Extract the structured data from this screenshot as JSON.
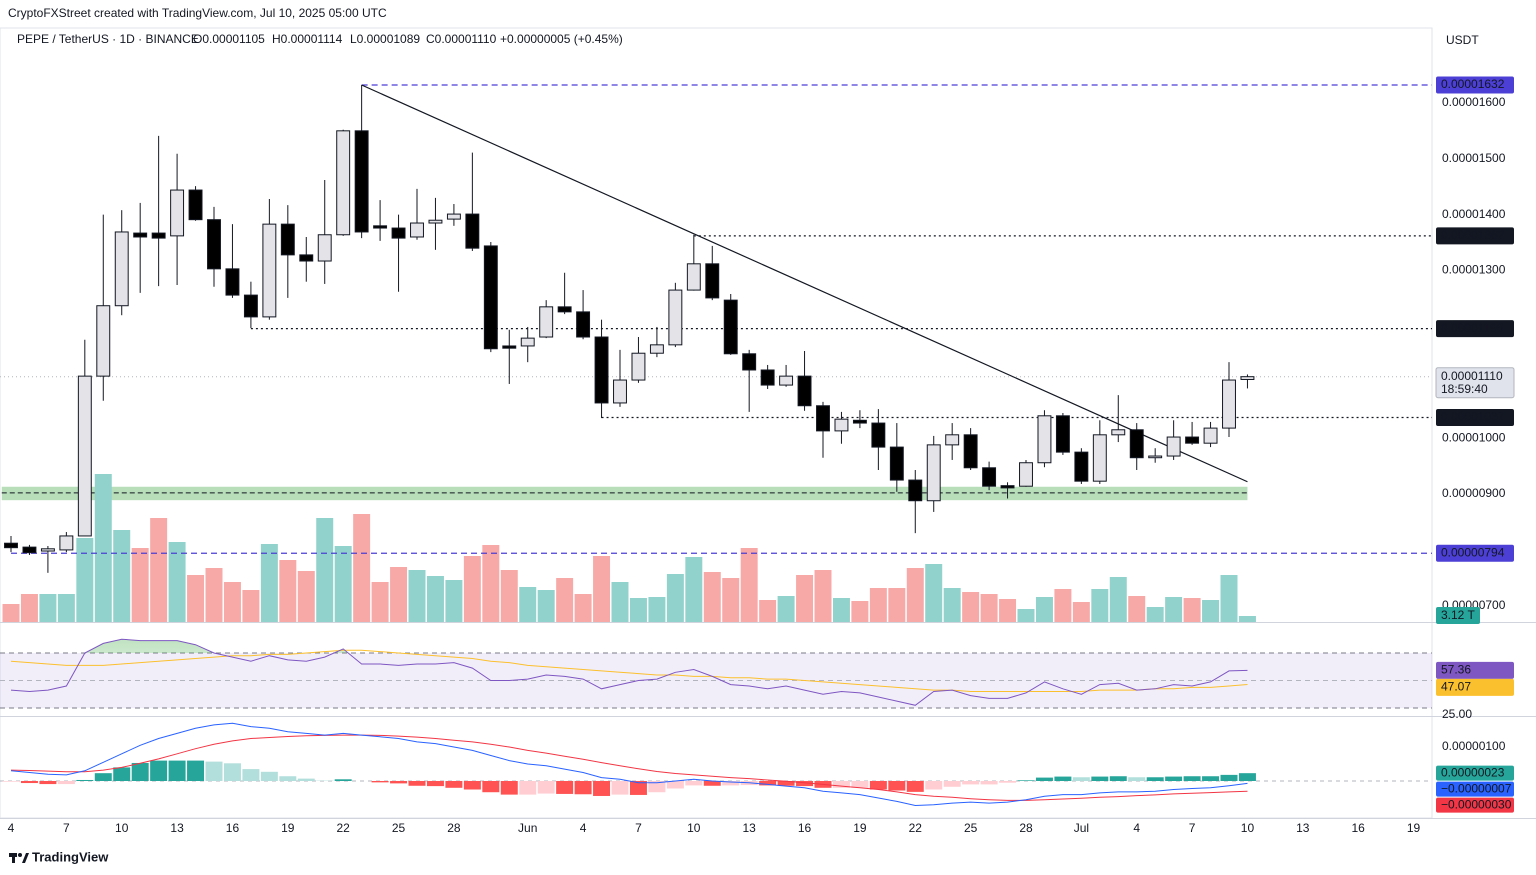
{
  "chart_data": {
    "type": "candlestick",
    "attribution": "CryptoFXStreet created with TradingView.com, Jul 10, 2025 05:00 UTC",
    "title": "PEPE / TetherUS · 1D · BINANCE",
    "ohlc_legend": [
      "O0.00001105",
      "H0.00001114",
      "L0.00001089",
      "C0.00001110",
      "+0.00000005 (+0.45%)"
    ],
    "currency": "USDT",
    "brand": "TradingView",
    "x": [
      "2025-05-04",
      "2025-05-05",
      "2025-05-06",
      "2025-05-07",
      "2025-05-08",
      "2025-05-09",
      "2025-05-10",
      "2025-05-11",
      "2025-05-12",
      "2025-05-13",
      "2025-05-14",
      "2025-05-15",
      "2025-05-16",
      "2025-05-17",
      "2025-05-18",
      "2025-05-19",
      "2025-05-20",
      "2025-05-21",
      "2025-05-22",
      "2025-05-23",
      "2025-05-24",
      "2025-05-25",
      "2025-05-26",
      "2025-05-27",
      "2025-05-28",
      "2025-05-29",
      "2025-05-30",
      "2025-05-31",
      "2025-06-01",
      "2025-06-02",
      "2025-06-03",
      "2025-06-04",
      "2025-06-05",
      "2025-06-06",
      "2025-06-07",
      "2025-06-08",
      "2025-06-09",
      "2025-06-10",
      "2025-06-11",
      "2025-06-12",
      "2025-06-13",
      "2025-06-14",
      "2025-06-15",
      "2025-06-16",
      "2025-06-17",
      "2025-06-18",
      "2025-06-19",
      "2025-06-20",
      "2025-06-21",
      "2025-06-22",
      "2025-06-23",
      "2025-06-24",
      "2025-06-25",
      "2025-06-26",
      "2025-06-27",
      "2025-06-28",
      "2025-06-29",
      "2025-06-30",
      "2025-07-01",
      "2025-07-02",
      "2025-07-03",
      "2025-07-04",
      "2025-07-05",
      "2025-07-06",
      "2025-07-07",
      "2025-07-08",
      "2025-07-09",
      "2025-07-10"
    ],
    "open": [
      8.12e-06,
      8.05e-06,
      7.98e-06,
      8e-06,
      8.25e-06,
      1.111e-05,
      1.237e-05,
      1.367e-05,
      1.367e-05,
      1.362e-05,
      1.444e-05,
      1.391e-05,
      1.303e-05,
      1.256e-05,
      1.217e-05,
      1.383e-05,
      1.328e-05,
      1.317e-05,
      1.364e-05,
      1.55e-05,
      1.38e-05,
      1.376e-05,
      1.36e-05,
      1.385e-05,
      1.392e-05,
      1.401e-05,
      1.344e-05,
      1.165e-05,
      1.165e-05,
      1.181e-05,
      1.235e-05,
      1.226e-05,
      1.181e-05,
      1.063e-05,
      1.104e-05,
      1.152e-05,
      1.167e-05,
      1.265e-05,
      1.312e-05,
      1.247e-05,
      1.151e-05,
      1.122e-05,
      1.095e-05,
      1.111e-05,
      1.058e-05,
      1.013e-05,
      1.032e-05,
      1.027e-05,
      9.84e-06,
      9.25e-06,
      8.88e-06,
      9.88e-06,
      1.006e-05,
      9.47e-06,
      9.15e-06,
      9.14e-06,
      9.56e-06,
      1.04e-05,
      9.75e-06,
      9.23e-06,
      1.006e-05,
      1.015e-05,
      9.65e-06,
      9.68e-06,
      1.002e-05,
      9.91e-06,
      1.018e-05,
      1.105e-05
    ],
    "high": [
      8.25e-06,
      8.09e-06,
      8.07e-06,
      8.32e-06,
      1.176e-05,
      1.4e-05,
      1.408e-05,
      1.421e-05,
      1.541e-05,
      1.509e-05,
      1.451e-05,
      1.414e-05,
      1.383e-05,
      1.28e-05,
      1.428e-05,
      1.417e-05,
      1.36e-05,
      1.462e-05,
      1.552e-05,
      1.632e-05,
      1.426e-05,
      1.4e-05,
      1.446e-05,
      1.43e-05,
      1.419e-05,
      1.511e-05,
      1.351e-05,
      1.194e-05,
      1.199e-05,
      1.247e-05,
      1.296e-05,
      1.265e-05,
      1.212e-05,
      1.158e-05,
      1.181e-05,
      1.199e-05,
      1.278e-05,
      1.364e-05,
      1.344e-05,
      1.258e-05,
      1.158e-05,
      1.131e-05,
      1.131e-05,
      1.156e-05,
      1.065e-05,
      1.047e-05,
      1.05e-05,
      1.052e-05,
      1.027e-05,
      9.43e-06,
      1.004e-05,
      1.027e-05,
      1.018e-05,
      9.58e-06,
      9.21e-06,
      9.61e-06,
      1.05e-05,
      1.045e-05,
      9.82e-06,
      1.032e-05,
      1.077e-05,
      1.027e-05,
      9.82e-06,
      1.032e-05,
      1.029e-05,
      1.029e-05,
      1.136e-05,
      1.114e-05
    ],
    "low": [
      7.96e-06,
      7.91e-06,
      7.59e-06,
      7.96e-06,
      8.25e-06,
      1.067e-05,
      1.22e-05,
      1.26e-05,
      1.272e-05,
      1.274e-05,
      1.389e-05,
      1.271e-05,
      1.251e-05,
      1.197e-05,
      1.212e-05,
      1.251e-05,
      1.28e-05,
      1.276e-05,
      1.362e-05,
      1.358e-05,
      1.353e-05,
      1.262e-05,
      1.355e-05,
      1.337e-05,
      1.38e-05,
      1.335e-05,
      1.154e-05,
      1.097e-05,
      1.136e-05,
      1.179e-05,
      1.222e-05,
      1.177e-05,
      1.036e-05,
      1.056e-05,
      1.099e-05,
      1.145e-05,
      1.163e-05,
      1.264e-05,
      1.247e-05,
      1.149e-05,
      1.047e-05,
      1.088e-05,
      1.092e-05,
      1.049e-05,
      9.65e-06,
      9.9e-06,
      1.018e-05,
      9.43e-06,
      9.04e-06,
      8.3e-06,
      8.68e-06,
      9.61e-06,
      9.43e-06,
      9.07e-06,
      8.92e-06,
      9.13e-06,
      9.48e-06,
      9.7e-06,
      9.18e-06,
      9.18e-06,
      9.93e-06,
      9.43e-06,
      9.56e-06,
      9.61e-06,
      9.88e-06,
      9.84e-06,
      1.002e-05,
      1.089e-05
    ],
    "close": [
      8.04e-06,
      7.95e-06,
      8.02e-06,
      8.25e-06,
      1.111e-05,
      1.237e-05,
      1.369e-05,
      1.36e-05,
      1.358e-05,
      1.444e-05,
      1.391e-05,
      1.303e-05,
      1.256e-05,
      1.217e-05,
      1.383e-05,
      1.328e-05,
      1.317e-05,
      1.364e-05,
      1.55e-05,
      1.369e-05,
      1.376e-05,
      1.358e-05,
      1.385e-05,
      1.39e-05,
      1.401e-05,
      1.34e-05,
      1.16e-05,
      1.161e-05,
      1.179e-05,
      1.235e-05,
      1.226e-05,
      1.181e-05,
      1.063e-05,
      1.104e-05,
      1.152e-05,
      1.167e-05,
      1.265e-05,
      1.312e-05,
      1.251e-05,
      1.151e-05,
      1.122e-05,
      1.095e-05,
      1.111e-05,
      1.058e-05,
      1.013e-05,
      1.034e-05,
      1.027e-05,
      9.84e-06,
      9.25e-06,
      8.88e-06,
      9.88e-06,
      1.006e-05,
      9.47e-06,
      9.14e-06,
      9.11e-06,
      9.56e-06,
      1.04e-05,
      9.75e-06,
      9.23e-06,
      1.006e-05,
      1.015e-05,
      9.65e-06,
      9.68e-06,
      1.002e-05,
      9.91e-06,
      1.018e-05,
      1.104e-05,
      1.11e-05
    ],
    "up_color": "#e3e3e8",
    "down_color": "#000000",
    "xlim": [
      "2025-05-04",
      "2025-07-20"
    ],
    "xticks": [
      {
        "value": "2025-05-04",
        "label": "4"
      },
      {
        "value": "2025-05-07",
        "label": "7"
      },
      {
        "value": "2025-05-10",
        "label": "10"
      },
      {
        "value": "2025-05-13",
        "label": "13"
      },
      {
        "value": "2025-05-16",
        "label": "16"
      },
      {
        "value": "2025-05-19",
        "label": "19"
      },
      {
        "value": "2025-05-22",
        "label": "22"
      },
      {
        "value": "2025-05-25",
        "label": "25"
      },
      {
        "value": "2025-05-28",
        "label": "28"
      },
      {
        "value": "2025-06-01",
        "label": "Jun"
      },
      {
        "value": "2025-06-04",
        "label": "4"
      },
      {
        "value": "2025-06-07",
        "label": "7"
      },
      {
        "value": "2025-06-10",
        "label": "10"
      },
      {
        "value": "2025-06-13",
        "label": "13"
      },
      {
        "value": "2025-06-16",
        "label": "16"
      },
      {
        "value": "2025-06-19",
        "label": "19"
      },
      {
        "value": "2025-06-22",
        "label": "22"
      },
      {
        "value": "2025-06-25",
        "label": "25"
      },
      {
        "value": "2025-06-28",
        "label": "28"
      },
      {
        "value": "2025-07-01",
        "label": "Jul"
      },
      {
        "value": "2025-07-04",
        "label": "4"
      },
      {
        "value": "2025-07-07",
        "label": "7"
      },
      {
        "value": "2025-07-10",
        "label": "10"
      },
      {
        "value": "2025-07-13",
        "label": "13"
      },
      {
        "value": "2025-07-16",
        "label": "16"
      },
      {
        "value": "2025-07-19",
        "label": "19"
      }
    ],
    "ylim": [
      6.71e-06,
      1.734e-05
    ],
    "yticks": [
      {
        "value": 1.6e-05,
        "label": "0.00001600"
      },
      {
        "value": 1.5e-05,
        "label": "0.00001500"
      },
      {
        "value": 1.4e-05,
        "label": "0.00001400"
      },
      {
        "value": 1.3e-05,
        "label": "0.00001300"
      },
      {
        "value": 1e-05,
        "label": "0.00001000"
      },
      {
        "value": 9e-06,
        "label": "0.00000900"
      },
      {
        "value": 7e-06,
        "label": "0.00000700"
      }
    ],
    "last_price_label": "0.00001110",
    "countdown": "18:59:40",
    "levels": [
      {
        "value": 1.632e-05,
        "label": "0.00001632",
        "from": "2025-05-23",
        "style": "dashed",
        "color": "#4c3fd6"
      },
      {
        "value": 1.362e-05,
        "label": "0.00001362",
        "from": "2025-06-10",
        "style": "dotted",
        "color": "#131722"
      },
      {
        "value": 1.196e-05,
        "label": "0.00001196",
        "from": "2025-05-17",
        "style": "dotted",
        "color": "#131722"
      },
      {
        "value": 1.037e-05,
        "label": "0.00001037",
        "from": "2025-06-05",
        "style": "dotted",
        "color": "#131722"
      },
      {
        "value": 7.94e-06,
        "label": "0.00000794",
        "from": "2025-05-04",
        "style": "dashed",
        "color": "#4c3fd6"
      }
    ],
    "zone": {
      "low": 8.89e-06,
      "high": 9.13e-06,
      "mid": 9.02e-06,
      "from": "2025-05-04",
      "to": "2025-07-10",
      "color": "#a5d6a7"
    },
    "trendline": {
      "start": [
        "2025-05-23",
        1.632e-05
      ],
      "end": [
        "2025-07-10",
        9.22e-06
      ]
    },
    "volume": {
      "values": [
        9.36,
        14.56,
        14.56,
        14.56,
        43.68,
        76.96,
        47.84,
        38.48,
        54.08,
        41.6,
        24.44,
        28.08,
        20.8,
        16.64,
        40.56,
        32.24,
        26.52,
        54.08,
        39.52,
        56.16,
        20.8,
        28.6,
        27.04,
        23.92,
        21.84,
        34.32,
        40.04,
        27.04,
        18.2,
        16.64,
        22.88,
        14.56,
        34.32,
        20.8,
        12.48,
        13,
        24.96,
        33.8,
        26,
        22.88,
        38.48,
        11.44,
        13.52,
        24.44,
        27.04,
        12.48,
        10.92,
        17.68,
        17.68,
        28.08,
        30.16,
        17.68,
        15.6,
        14.56,
        11.96,
        6.76,
        13,
        17.16,
        10.4,
        17.16,
        23.4,
        13.52,
        7.8,
        13,
        12.48,
        11.44,
        24.44,
        3.12
      ],
      "ylim": [
        0,
        308.88
      ],
      "up_color": "#92d2cc",
      "down_color": "#f7a9a7",
      "last_label": "3.12 T"
    },
    "rsi": {
      "values": [
        43,
        42,
        43,
        46,
        70,
        77,
        80,
        79,
        79,
        79,
        76,
        70,
        67,
        64,
        68,
        65,
        64,
        67,
        73,
        62,
        62,
        61,
        62,
        62,
        63,
        59,
        50,
        50,
        51,
        54,
        53,
        51,
        44,
        47,
        50,
        51,
        56,
        58,
        53,
        47,
        46,
        44,
        46,
        43,
        40,
        42,
        41,
        38,
        35,
        32,
        42,
        43,
        39,
        37,
        37,
        41,
        49,
        44,
        40,
        47,
        48,
        43,
        44,
        47,
        46,
        49,
        57,
        57.36
      ],
      "color": "#7e57c2",
      "ma": {
        "values": [
          64,
          63,
          62,
          61,
          61,
          61,
          62,
          63,
          64,
          65,
          66,
          67,
          68,
          68,
          69,
          69,
          70,
          71,
          72,
          72,
          71,
          70,
          69,
          68,
          67,
          66,
          64,
          63,
          61,
          60,
          59,
          58,
          57,
          56,
          55,
          54,
          54,
          53,
          53,
          52,
          52,
          51,
          51,
          50,
          49,
          48,
          47,
          46,
          45,
          44,
          43,
          43,
          42,
          42,
          42,
          42,
          42,
          42,
          42,
          43,
          43,
          43,
          44,
          44,
          45,
          45,
          46,
          47.07
        ],
        "color": "#fbc02d"
      },
      "ylim": [
        24.2,
        91.8
      ],
      "yticks": [
        {
          "value": 25,
          "label": "25.00"
        }
      ],
      "levels": [
        70,
        50,
        30
      ]
    },
    "macd": {
      "macd": {
        "values": [
          3e-07,
          2.5e-07,
          2e-07,
          1.8e-07,
          3e-07,
          5.5e-07,
          8e-07,
          1.05e-06,
          1.25e-06,
          1.4e-06,
          1.55e-06,
          1.65e-06,
          1.7e-06,
          1.6e-06,
          1.55e-06,
          1.45e-06,
          1.4e-06,
          1.35e-06,
          1.4e-06,
          1.35e-06,
          1.3e-06,
          1.25e-06,
          1.15e-06,
          1.1e-06,
          1e-06,
          9e-07,
          7.5e-07,
          6e-07,
          5e-07,
          4.5e-07,
          3.5e-07,
          2.5e-07,
          1e-07,
          5e-08,
          -5e-08,
          -5e-08,
          0,
          5e-08,
          0,
          -3e-08,
          -5e-08,
          -1e-07,
          -1.5e-07,
          -2e-07,
          -3e-07,
          -3.5e-07,
          -4e-07,
          -5e-07,
          -6e-07,
          -7.2e-07,
          -7e-07,
          -6.5e-07,
          -6.2e-07,
          -6.5e-07,
          -6.2e-07,
          -5.5e-07,
          -4.5e-07,
          -4e-07,
          -4e-07,
          -3.5e-07,
          -3.2e-07,
          -3.2e-07,
          -3e-07,
          -2.5e-07,
          -2.2e-07,
          -2e-07,
          -1.4e-07,
          -7e-08
        ],
        "color": "#2962ff",
        "last_label": "−0.00000007"
      },
      "signal": {
        "values": [
          3.2e-07,
          3.1e-07,
          2.9e-07,
          2.7e-07,
          2.7e-07,
          3.2e-07,
          4e-07,
          5.2e-07,
          6.5e-07,
          8e-07,
          9.5e-07,
          1.08e-06,
          1.18e-06,
          1.25e-06,
          1.28e-06,
          1.31e-06,
          1.33e-06,
          1.34e-06,
          1.35e-06,
          1.35e-06,
          1.34e-06,
          1.32e-06,
          1.29e-06,
          1.25e-06,
          1.2e-06,
          1.15e-06,
          1.08e-06,
          1e-06,
          9e-07,
          8.2e-07,
          7.3e-07,
          6.4e-07,
          5.4e-07,
          4.5e-07,
          3.6e-07,
          2.8e-07,
          2.2e-07,
          1.8e-07,
          1.4e-07,
          1e-07,
          7e-08,
          3e-08,
          -1e-08,
          -5e-08,
          -1e-07,
          -1.5e-07,
          -2e-07,
          -2.5e-07,
          -3.2e-07,
          -4e-07,
          -4.5e-07,
          -4.8e-07,
          -5.2e-07,
          -5.5e-07,
          -5.7e-07,
          -5.7e-07,
          -5.5e-07,
          -5.3e-07,
          -5.1e-07,
          -4.8e-07,
          -4.6e-07,
          -4.3e-07,
          -4.1e-07,
          -3.8e-07,
          -3.6e-07,
          -3.4e-07,
          -3.2e-07,
          -3e-07
        ],
        "color": "#f23645",
        "last_label": "−0.00000030"
      },
      "histogram": {
        "values": [
          -2e-08,
          -6e-08,
          -9e-08,
          -9e-08,
          3e-08,
          2.3e-07,
          4e-07,
          5.3e-07,
          6e-07,
          6e-07,
          6e-07,
          5.7e-07,
          5.2e-07,
          3.5e-07,
          2.7e-07,
          1.4e-07,
          7e-08,
          1e-08,
          5e-08,
          0,
          -4e-08,
          -7e-08,
          -1.4e-07,
          -1.5e-07,
          -2e-07,
          -2.5e-07,
          -3.3e-07,
          -4e-07,
          -4e-07,
          -3.7e-07,
          -3.8e-07,
          -3.9e-07,
          -4.4e-07,
          -4e-07,
          -4.1e-07,
          -3.3e-07,
          -2.2e-07,
          -1.3e-07,
          -1.4e-07,
          -1.3e-07,
          -1.2e-07,
          -1.3e-07,
          -1.4e-07,
          -1.5e-07,
          -2e-07,
          -2e-07,
          -2e-07,
          -2.5e-07,
          -2.8e-07,
          -3.2e-07,
          -2.5e-07,
          -1.7e-07,
          -1e-07,
          -1e-07,
          -5e-08,
          2e-08,
          1e-07,
          1.3e-07,
          1.1e-07,
          1.3e-07,
          1.4e-07,
          1.1e-07,
          1.1e-07,
          1.3e-07,
          1.4e-07,
          1.4e-07,
          1.8e-07,
          2.3e-07
        ],
        "colors": [
          "#26a69a",
          "#b2dfdb",
          "#ffcdd2",
          "#ff5252"
        ],
        "last_label": "0.00000023"
      },
      "ylim": [
        -1.088e-06,
        1.882e-06
      ],
      "yticks": [
        {
          "value": 1e-06,
          "label": "0.00000100"
        }
      ]
    }
  }
}
